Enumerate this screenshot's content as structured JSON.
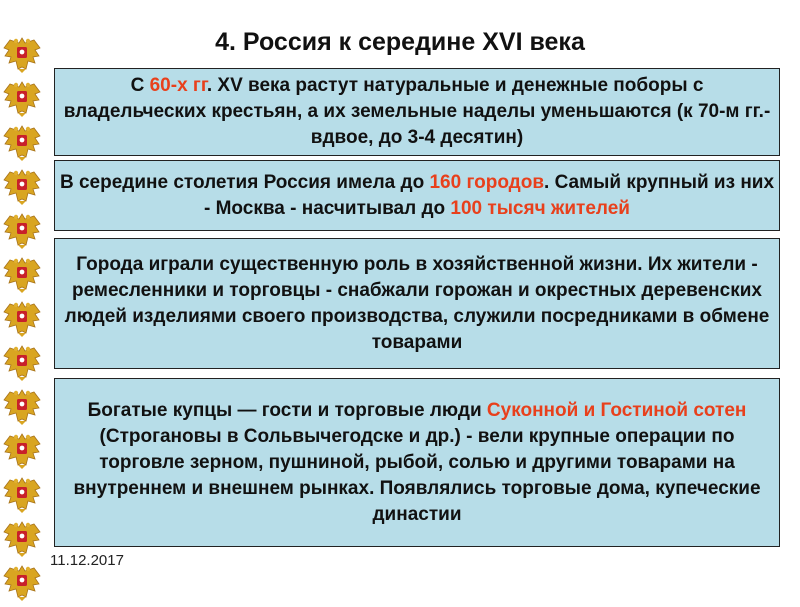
{
  "title": "4. Россия к середине XVI века",
  "date": "11.12.2017",
  "colors": {
    "box_fill": "#b7dde8",
    "highlight": "#e8401c"
  },
  "decoration": {
    "icon": "russian-double-headed-eagle-icon",
    "count": 13
  },
  "blocks": [
    {
      "parts": [
        {
          "text": "С ",
          "highlight": false
        },
        {
          "text": "60-х гг",
          "highlight": true
        },
        {
          "text": ". XV века растут натуральные и денежные поборы с владельческих крестьян, а их земельные наделы уменьшаются (к 70-м гг.- вдвое, до 3-4 десятин)",
          "highlight": false
        }
      ]
    },
    {
      "parts": [
        {
          "text": "В середине столетия Россия имела до ",
          "highlight": false
        },
        {
          "text": "160 городов",
          "highlight": true
        },
        {
          "text": ". Самый крупный из них - Москва - насчитывал до ",
          "highlight": false
        },
        {
          "text": "100 тысяч жителей",
          "highlight": true
        }
      ]
    },
    {
      "parts": [
        {
          "text": "Города играли существенную роль в хозяйственной жизни. Их жители - ремесленники и торговцы - снабжали горожан и окрестных деревенских людей изделиями своего производства, служили посредниками в обмене товарами",
          "highlight": false
        }
      ]
    },
    {
      "parts": [
        {
          "text": "Богатые купцы — гости и торговые люди ",
          "highlight": false
        },
        {
          "text": "Суконной и Гостиной сотен",
          "highlight": true
        },
        {
          "text": " (Строгановы в Сольвычегодске и др.) - вели крупные операции по торговле зерном, пушниной, рыбой, солью и другими товарами на внутреннем и внешнем рынках. Появлялись торговые дома, купеческие династии",
          "highlight": false
        }
      ]
    }
  ]
}
